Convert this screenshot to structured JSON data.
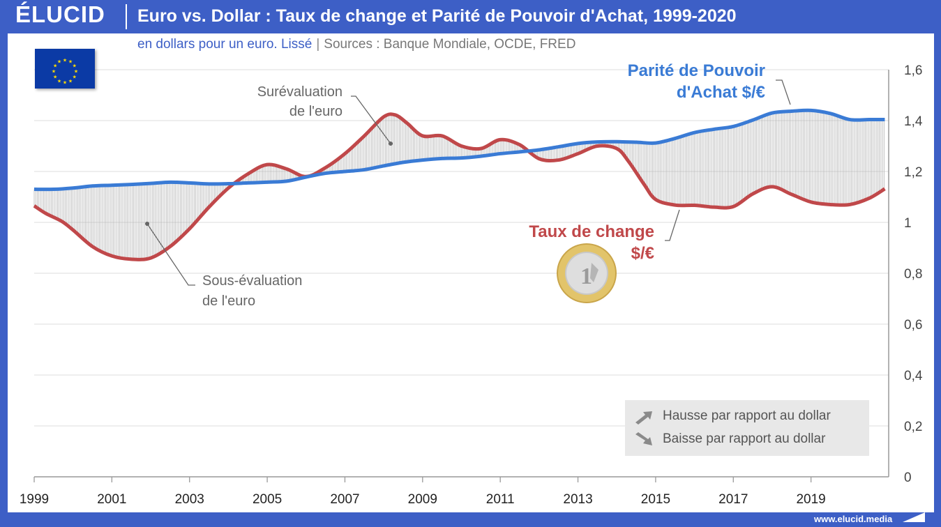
{
  "header": {
    "logo": "ÉLUCID",
    "title": "Euro vs. Dollar : Taux de change et Parité de Pouvoir d'Achat, 1999-2020"
  },
  "subtitle": {
    "unit": "en dollars pour un euro. Lissé",
    "separator": "|",
    "sources": "Sources : Banque Mondiale, OCDE, FRED"
  },
  "annotations": {
    "ppa_line1": "Parité de Pouvoir",
    "ppa_line2": "d'Achat $/€",
    "fx_line1": "Taux de change",
    "fx_line2": "$/€",
    "over_line1": "Surévaluation",
    "over_line2": "de l'euro",
    "under_line1": "Sous-évaluation",
    "under_line2": "de l'euro"
  },
  "legend": {
    "up": "Hausse par rapport au dollar",
    "down": "Baisse par rapport au dollar"
  },
  "footer": {
    "url": "www.elucid.media"
  },
  "icons": {
    "flag": "eu-flag-icon",
    "coin": "euro-coin-icon",
    "up": "arrow-up-right-icon",
    "down": "arrow-down-right-icon"
  },
  "colors": {
    "background": "#3d5fc6",
    "ppa": "#3a7bd5",
    "fx": "#c0484a",
    "grid": "#dcdcdc",
    "text": "#555555"
  },
  "chart_data": {
    "type": "line",
    "title": "Euro vs. Dollar : Taux de change et Parité de Pouvoir d'Achat, 1999-2020",
    "xlim": [
      1999,
      2021
    ],
    "ylim": [
      0,
      1.6
    ],
    "x_ticks": [
      "1999",
      "2001",
      "2003",
      "2005",
      "2007",
      "2009",
      "2011",
      "2013",
      "2015",
      "2017",
      "2019"
    ],
    "x_tick_values": [
      1999,
      2001,
      2003,
      2005,
      2007,
      2009,
      2011,
      2013,
      2015,
      2017,
      2019
    ],
    "y_ticks": [
      "0",
      "0,2",
      "0,4",
      "0,6",
      "0,8",
      "1",
      "1,2",
      "1,4",
      "1,6"
    ],
    "y_tick_values": [
      0,
      0.2,
      0.4,
      0.6,
      0.8,
      1.0,
      1.2,
      1.4,
      1.6
    ],
    "grid": true,
    "series": [
      {
        "name": "Parité de Pouvoir d'Achat $/€",
        "color": "#3a7bd5",
        "x": [
          1999,
          1999.5,
          2000,
          2000.5,
          2001,
          2001.5,
          2002,
          2002.5,
          2003,
          2003.5,
          2004,
          2004.5,
          2005,
          2005.5,
          2006,
          2006.5,
          2007,
          2007.5,
          2008,
          2008.5,
          2009,
          2009.5,
          2010,
          2010.5,
          2011,
          2011.5,
          2012,
          2012.5,
          2013,
          2013.5,
          2014,
          2014.5,
          2015,
          2015.5,
          2016,
          2016.5,
          2017,
          2017.5,
          2018,
          2018.5,
          2019,
          2019.5,
          2020,
          2020.5,
          2020.9
        ],
        "values": [
          1.13,
          1.13,
          1.135,
          1.143,
          1.146,
          1.149,
          1.153,
          1.158,
          1.155,
          1.151,
          1.152,
          1.155,
          1.158,
          1.162,
          1.178,
          1.193,
          1.2,
          1.207,
          1.222,
          1.236,
          1.245,
          1.251,
          1.253,
          1.26,
          1.27,
          1.277,
          1.285,
          1.297,
          1.31,
          1.316,
          1.317,
          1.315,
          1.312,
          1.33,
          1.353,
          1.366,
          1.377,
          1.402,
          1.43,
          1.437,
          1.44,
          1.428,
          1.404,
          1.404,
          1.404
        ]
      },
      {
        "name": "Taux de change $/€",
        "color": "#c0484a",
        "x": [
          1999,
          1999.3,
          1999.7,
          2000,
          2000.5,
          2001,
          2001.5,
          2002,
          2002.5,
          2003,
          2003.5,
          2004,
          2004.5,
          2005,
          2005.5,
          2006,
          2006.5,
          2007,
          2007.5,
          2008,
          2008.3,
          2008.6,
          2009,
          2009.5,
          2010,
          2010.5,
          2011,
          2011.5,
          2012,
          2012.5,
          2013,
          2013.5,
          2014,
          2014.3,
          2014.7,
          2015,
          2015.5,
          2016,
          2016.5,
          2017,
          2017.5,
          2018,
          2018.5,
          2019,
          2019.5,
          2020,
          2020.5,
          2020.9
        ],
        "values": [
          1.065,
          1.035,
          1.005,
          0.97,
          0.905,
          0.868,
          0.855,
          0.86,
          0.905,
          0.975,
          1.06,
          1.135,
          1.19,
          1.227,
          1.21,
          1.18,
          1.215,
          1.27,
          1.34,
          1.415,
          1.422,
          1.39,
          1.34,
          1.34,
          1.3,
          1.29,
          1.325,
          1.305,
          1.25,
          1.245,
          1.27,
          1.3,
          1.29,
          1.24,
          1.15,
          1.09,
          1.068,
          1.067,
          1.06,
          1.062,
          1.112,
          1.14,
          1.11,
          1.08,
          1.07,
          1.07,
          1.095,
          1.132
        ]
      }
    ]
  }
}
